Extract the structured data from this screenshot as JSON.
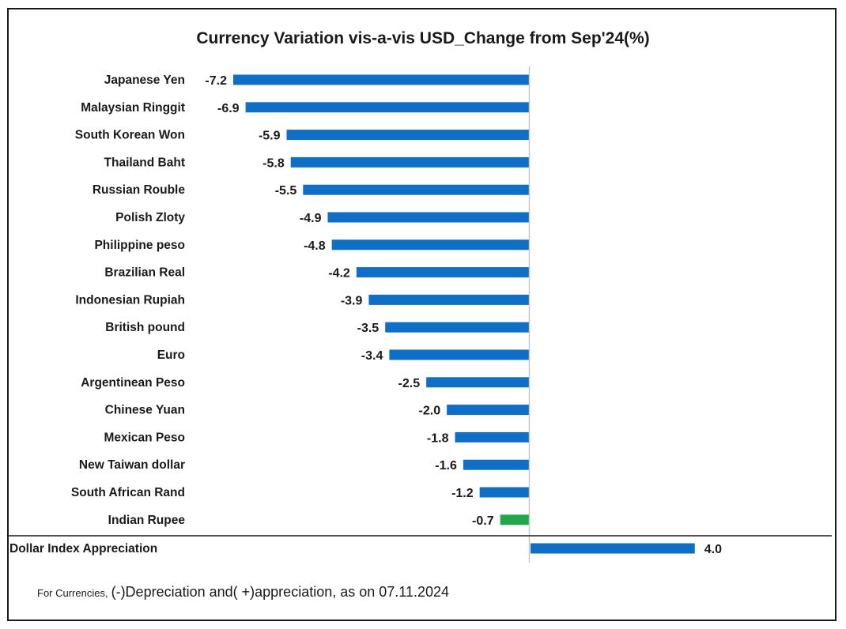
{
  "chart_data": {
    "type": "bar",
    "orientation": "horizontal",
    "title": "Currency Variation vis-a-vis USD_Change from Sep'24(%)",
    "categories": [
      "Japanese Yen",
      "Malaysian Ringgit",
      "South Korean Won",
      "Thailand Baht",
      "Russian Rouble",
      "Polish Zloty",
      "Philippine peso",
      "Brazilian Real",
      "Indonesian Rupiah",
      "British pound",
      "Euro",
      "Argentinean Peso",
      "Chinese Yuan",
      "Mexican Peso",
      "New Taiwan dollar",
      "South African Rand",
      "Indian Rupee",
      "Dollar Index Appreciation"
    ],
    "values": [
      -7.2,
      -6.9,
      -5.9,
      -5.8,
      -5.5,
      -4.9,
      -4.8,
      -4.2,
      -3.9,
      -3.5,
      -3.4,
      -2.5,
      -2.0,
      -1.8,
      -1.6,
      -1.2,
      -0.7,
      4.0
    ],
    "value_labels": [
      "-7.2",
      "-6.9",
      "-5.9",
      "-5.8",
      "-5.5",
      "-4.9",
      "-4.8",
      "-4.2",
      "-3.9",
      "-3.5",
      "-3.4",
      "-2.5",
      "-2.0",
      "-1.8",
      "-1.6",
      "-1.2",
      "-0.7",
      "4.0"
    ],
    "highlight_category": "Indian Rupee",
    "xlim": [
      -7.2,
      4.0
    ],
    "colors": {
      "bar": "#0f6fc6",
      "highlight": "#1fa84a",
      "axis": "#c8c8c8",
      "separator": "#1a1a1a"
    },
    "footnote_prefix": "For Currencies,",
    "footnote_text": "(-)Depreciation and( +)appreciation, as on 07.11.2024",
    "grid": false,
    "legend": "none"
  }
}
